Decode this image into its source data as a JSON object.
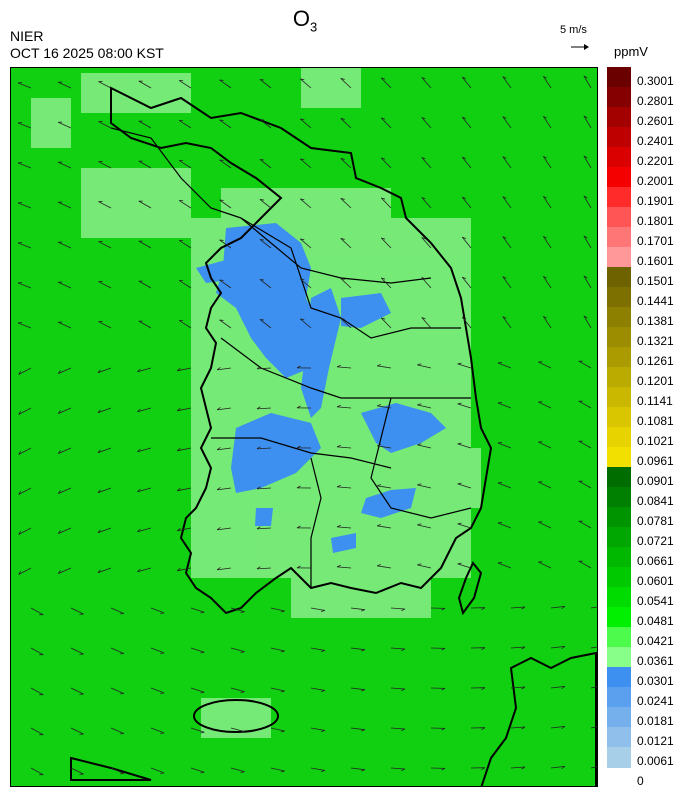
{
  "header": {
    "title_main": "O",
    "title_sub": "3",
    "agency": "NIER",
    "datetime": "OCT 16 2025 08:00 KST",
    "vector_reference": "5 m/s",
    "unit": "ppmV"
  },
  "legend": {
    "labels": [
      "0.3001",
      "0.2801",
      "0.2601",
      "0.2401",
      "0.2201",
      "0.2001",
      "0.1901",
      "0.1801",
      "0.1701",
      "0.1601",
      "0.1501",
      "0.1441",
      "0.1381",
      "0.1321",
      "0.1261",
      "0.1201",
      "0.1141",
      "0.1081",
      "0.1021",
      "0.0961",
      "0.0901",
      "0.0841",
      "0.0781",
      "0.0721",
      "0.0661",
      "0.0601",
      "0.0541",
      "0.0481",
      "0.0421",
      "0.0361",
      "0.0301",
      "0.0241",
      "0.0181",
      "0.0121",
      "0.0061",
      "0"
    ],
    "colors": [
      "#6b0000",
      "#850000",
      "#a30000",
      "#bf0000",
      "#db0000",
      "#f50000",
      "#ff2a2a",
      "#ff5555",
      "#ff7676",
      "#ff9999",
      "#6e6200",
      "#7d7000",
      "#8d7f00",
      "#9c8d00",
      "#ab9b00",
      "#bbaa00",
      "#cab800",
      "#d9c600",
      "#e6d300",
      "#f2e000",
      "#006d00",
      "#008000",
      "#009400",
      "#00a700",
      "#00b800",
      "#00c900",
      "#00dc00",
      "#00f000",
      "#4dfb4d",
      "#88ff88",
      "#3d8ff0",
      "#5aa0ee",
      "#75afec",
      "#8fbfea",
      "#a8cfe8"
    ]
  },
  "map": {
    "background_color": "#11d011",
    "low_ozone_color": "#3d8ff0",
    "mid_ozone_color": "#88ee88",
    "region": "Korean Peninsula (South Korea)"
  }
}
